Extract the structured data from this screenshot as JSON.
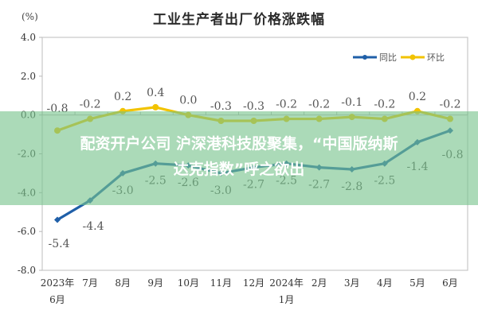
{
  "chart_data": {
    "type": "line",
    "title": "工业生产者出厂价格涨跌幅",
    "ylabel": "(%)",
    "xlabel": "",
    "ylim": [
      -8.0,
      4.0
    ],
    "yticks": [
      "4.0",
      "2.0",
      "0.0",
      "-2.0",
      "-4.0",
      "-6.0",
      "-8.0"
    ],
    "categories": [
      "2023年6月",
      "7月",
      "8月",
      "9月",
      "10月",
      "11月",
      "12月",
      "2024年1月",
      "2月",
      "3月",
      "4月",
      "5月",
      "6月"
    ],
    "category_lines": [
      [
        "2023年",
        "6月"
      ],
      [
        "7月"
      ],
      [
        "8月"
      ],
      [
        "9月"
      ],
      [
        "10月"
      ],
      [
        "11月"
      ],
      [
        "12月"
      ],
      [
        "2024年",
        "1月"
      ],
      [
        "2月"
      ],
      [
        "3月"
      ],
      [
        "4月"
      ],
      [
        "5月"
      ],
      [
        "6月"
      ]
    ],
    "series": [
      {
        "name": "同比",
        "color": "#1f5fa8",
        "values": [
          -5.4,
          -4.4,
          -3.0,
          -2.5,
          -2.6,
          -3.0,
          -2.7,
          -2.5,
          -2.7,
          -2.8,
          -2.5,
          -1.4,
          -0.8
        ],
        "labels": [
          "-5.4",
          "-4.4",
          "-3.0",
          "-2.5",
          "-2.6",
          "-3.0",
          "-2.7",
          "-2.5",
          "-2.7",
          "-2.8",
          "-2.5",
          "-1.4",
          "-0.8"
        ]
      },
      {
        "name": "环比",
        "color": "#f2c300",
        "values": [
          -0.8,
          -0.2,
          0.2,
          0.4,
          0.0,
          -0.3,
          -0.3,
          -0.2,
          -0.2,
          -0.1,
          -0.2,
          0.2,
          -0.2
        ],
        "labels": [
          "-0.8",
          "-0.2",
          "0.2",
          "0.4",
          "0.0",
          "-0.3",
          "-0.3",
          "-0.2",
          "-0.2",
          "-0.1",
          "-0.2",
          "0.2",
          "-0.2"
        ]
      }
    ],
    "legend_position": "top-right",
    "grid": false
  },
  "overlay": {
    "line1": "配资开户公司 沪深港科技股聚集，“中国版纳斯",
    "line2": "达克指数”呼之欲出",
    "color": "#78c48c"
  }
}
